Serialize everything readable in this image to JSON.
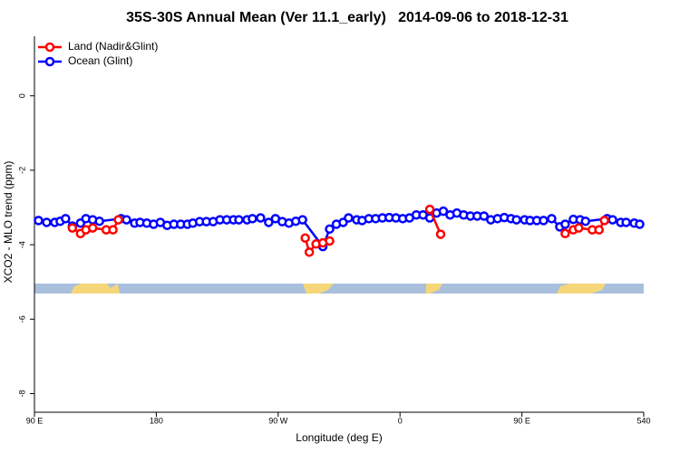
{
  "chart_data": {
    "type": "line",
    "title": "35S-30S Annual Mean (Ver 11.1_early)   2014-09-06 to 2018-12-31",
    "x_label": "Longitude (deg E)",
    "y_label": "XCO2 - MLO trend (ppm)",
    "xlim": [
      90,
      540
    ],
    "ylim": [
      -8.5,
      1.6
    ],
    "xticks": [
      {
        "value": 90,
        "label": "90 E"
      },
      180,
      {
        "value": 270,
        "label": "90 W"
      },
      {
        "value": 360,
        "label": "0"
      },
      {
        "value": 450,
        "label": "90 E"
      },
      540
    ],
    "yticks": [
      0,
      -2,
      -4,
      -6,
      -8
    ],
    "legend": "top-left",
    "series": [
      {
        "name": "Ocean (Glint)",
        "color": "#0000ff",
        "x": [
          93,
          99,
          105,
          109,
          113,
          118,
          124,
          128,
          133,
          138,
          154,
          158,
          164,
          168,
          173,
          178,
          183,
          188,
          193,
          198,
          203,
          207,
          212,
          217,
          222,
          227,
          232,
          237,
          241,
          247,
          251,
          257,
          263,
          268,
          273,
          278,
          283,
          288,
          303,
          308,
          313,
          318,
          322,
          328,
          332,
          337,
          342,
          347,
          352,
          357,
          362,
          367,
          372,
          377,
          382,
          387,
          392,
          397,
          402,
          407,
          412,
          417,
          422,
          427,
          432,
          437,
          442,
          446,
          452,
          456,
          461,
          466,
          472,
          478,
          482,
          488,
          493,
          497,
          513,
          517,
          523,
          527,
          533,
          537
        ],
        "values": [
          -3.35,
          -3.4,
          -3.4,
          -3.37,
          -3.3,
          -3.5,
          -3.42,
          -3.3,
          -3.33,
          -3.37,
          -3.3,
          -3.33,
          -3.42,
          -3.4,
          -3.42,
          -3.45,
          -3.4,
          -3.48,
          -3.45,
          -3.45,
          -3.45,
          -3.42,
          -3.38,
          -3.38,
          -3.38,
          -3.33,
          -3.33,
          -3.33,
          -3.33,
          -3.33,
          -3.3,
          -3.28,
          -3.4,
          -3.3,
          -3.38,
          -3.42,
          -3.37,
          -3.33,
          -4.05,
          -3.58,
          -3.45,
          -3.4,
          -3.28,
          -3.33,
          -3.35,
          -3.3,
          -3.3,
          -3.28,
          -3.27,
          -3.28,
          -3.3,
          -3.28,
          -3.2,
          -3.2,
          -3.28,
          -3.15,
          -3.1,
          -3.2,
          -3.15,
          -3.2,
          -3.23,
          -3.23,
          -3.23,
          -3.33,
          -3.3,
          -3.27,
          -3.3,
          -3.33,
          -3.33,
          -3.35,
          -3.35,
          -3.35,
          -3.3,
          -3.52,
          -3.45,
          -3.32,
          -3.33,
          -3.37,
          -3.3,
          -3.33,
          -3.4,
          -3.4,
          -3.42,
          -3.45
        ]
      },
      {
        "name": "Land (Nadir&Glint)",
        "color": "#ff0000",
        "x": [
          118,
          124,
          128,
          133,
          143,
          148,
          152,
          null,
          290,
          293,
          298,
          303,
          308,
          null,
          382,
          390,
          null,
          482,
          488,
          492,
          502,
          507,
          511
        ],
        "values": [
          -3.55,
          -3.7,
          -3.6,
          -3.55,
          -3.6,
          -3.6,
          -3.33,
          null,
          -3.82,
          -4.2,
          -3.98,
          -3.95,
          -3.9,
          null,
          -3.05,
          -3.72,
          null,
          -3.7,
          -3.6,
          -3.55,
          -3.6,
          -3.6,
          -3.35
        ]
      }
    ]
  }
}
